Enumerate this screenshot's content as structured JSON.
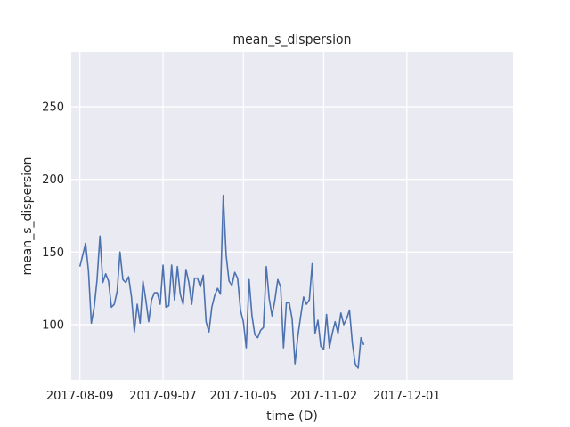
{
  "chart_data": {
    "type": "line",
    "title": "mean_s_dispersion",
    "xlabel": "time (D)",
    "ylabel": "mean_s_dispersion",
    "x_start": "2017-08-09",
    "x_step_days": 1,
    "xlim": [
      "2017-08-06",
      "2018-01-07"
    ],
    "ylim": [
      62,
      288
    ],
    "x_ticks": [
      "2017-08-09",
      "2017-09-07",
      "2017-10-05",
      "2017-11-02",
      "2017-12-01"
    ],
    "y_ticks": [
      100,
      150,
      200,
      250
    ],
    "grid": true,
    "background": "#eaeaf2",
    "series": [
      {
        "name": "",
        "color": "#4c72b0",
        "values": [
          140,
          148,
          156,
          137,
          101,
          112,
          131,
          161,
          129,
          135,
          130,
          112,
          114,
          123,
          150,
          131,
          129,
          133,
          119,
          95,
          114,
          101,
          130,
          117,
          102,
          117,
          122,
          122,
          114,
          141,
          112,
          113,
          141,
          117,
          140,
          121,
          114,
          138,
          129,
          114,
          132,
          132,
          126,
          134,
          102,
          95,
          112,
          120,
          125,
          121,
          189,
          148,
          130,
          127,
          136,
          132,
          110,
          102,
          84,
          131,
          106,
          93,
          91,
          96,
          98,
          140,
          118,
          106,
          117,
          131,
          126,
          84,
          115,
          115,
          104,
          73,
          92,
          106,
          119,
          114,
          117,
          142,
          94,
          103,
          85,
          83,
          107,
          84,
          94,
          102,
          94,
          108,
          100,
          104,
          110,
          87,
          73,
          70,
          91,
          86
        ]
      }
    ]
  }
}
